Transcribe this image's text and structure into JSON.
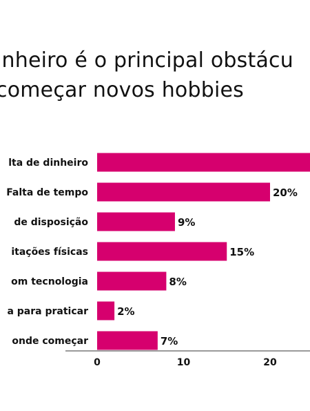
{
  "chart_data": {
    "type": "bar",
    "orientation": "horizontal",
    "title_lines": [
      "inheiro é o principal obstácu",
      "começar novos hobbies"
    ],
    "categories": [
      "lta de dinheiro",
      "Falta de tempo",
      "de disposição",
      "itações físicas",
      "om tecnologia",
      "a para praticar",
      "onde começar"
    ],
    "values": [
      25,
      20,
      9,
      15,
      8,
      2,
      7
    ],
    "value_labels": [
      "",
      "20%",
      "9%",
      "15%",
      "8%",
      "2%",
      "7%"
    ],
    "xticks": [
      0,
      10,
      20
    ],
    "xlim": [
      0,
      25
    ],
    "grid": false,
    "colors": {
      "bar": "#d6006e",
      "axis": "#9a9a9a",
      "text": "#111111"
    }
  }
}
